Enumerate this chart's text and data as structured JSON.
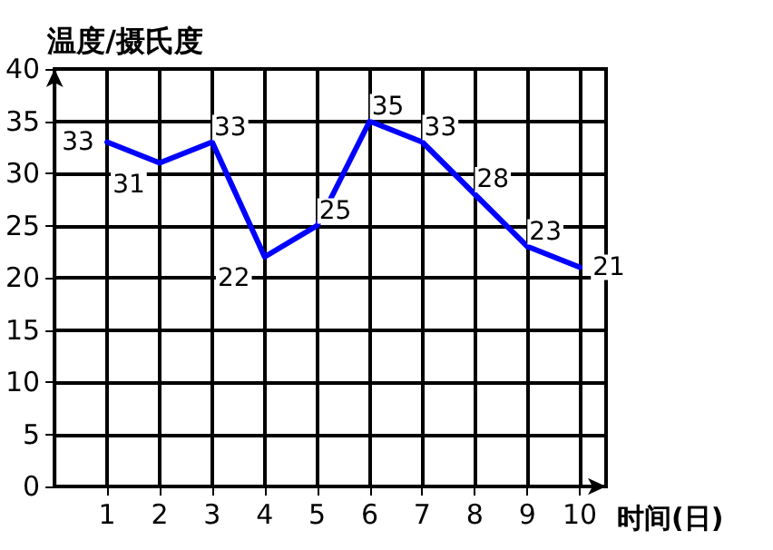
{
  "chart_data": {
    "type": "line",
    "xlabel": "时间(日)",
    "ylabel": "温度/摄氏度",
    "x": [
      1,
      2,
      3,
      4,
      5,
      6,
      7,
      8,
      9,
      10
    ],
    "series": [
      {
        "color": "#0000ff",
        "values": [
          33,
          31,
          33,
          22,
          25,
          35,
          33,
          28,
          23,
          21
        ]
      }
    ],
    "xlim": [
      0,
      10.5
    ],
    "xticks": [
      1,
      2,
      3,
      4,
      5,
      6,
      7,
      8,
      9,
      10
    ],
    "ylim": [
      0,
      40
    ],
    "yticks": [
      0,
      5,
      10,
      15,
      20,
      25,
      30,
      35,
      40
    ],
    "grid": true,
    "data_labels": true,
    "marker": "none",
    "line_style": "solid"
  }
}
